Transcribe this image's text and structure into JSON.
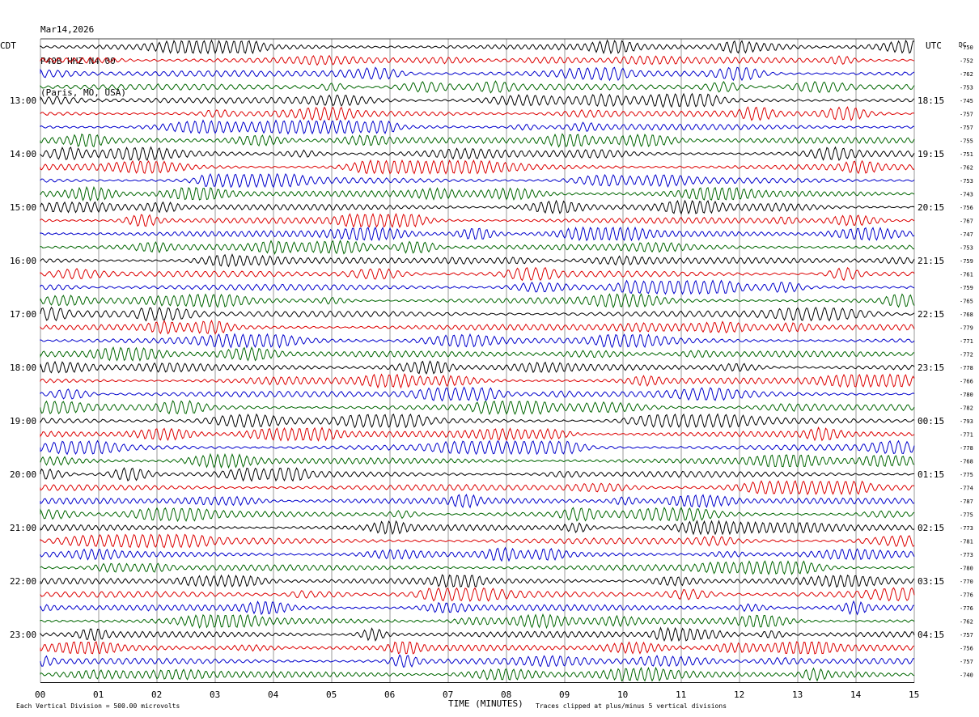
{
  "header": {
    "date": "Mar14,2026",
    "station": "P40B HHZ N4 00",
    "location": "(Paris, MO, USA)"
  },
  "left_tz": "CDT",
  "right_tz": "UTC",
  "dc_label": "DC",
  "xlabel": "TIME (MINUTES)",
  "footer_left": "Each Vertical Division =  500.00 microvolts",
  "footer_right": "Traces clipped at plus/minus 5 vertical divisions",
  "colors": {
    "trace_cycle": [
      "#000000",
      "#dd0000",
      "#0000cc",
      "#006600"
    ],
    "grid": "#555555"
  },
  "chart_data": {
    "type": "line",
    "title": "P40B HHZ N4 00",
    "xlabel": "TIME (MINUTES)",
    "x_ticks": [
      "00",
      "01",
      "02",
      "03",
      "04",
      "05",
      "06",
      "07",
      "08",
      "09",
      "10",
      "11",
      "12",
      "13",
      "14",
      "15"
    ],
    "xlim": [
      0,
      15
    ],
    "left_hour_labels": [
      "13:00",
      "14:00",
      "15:00",
      "16:00",
      "17:00",
      "18:00",
      "19:00",
      "20:00",
      "21:00",
      "22:00",
      "23:00"
    ],
    "right_hour_labels": [
      "18:15",
      "19:15",
      "20:15",
      "21:15",
      "22:15",
      "23:15",
      "00:15",
      "01:15",
      "02:15",
      "03:15",
      "04:15"
    ],
    "dc_offsets": [
      -750,
      -752,
      -762,
      -753,
      -745,
      -757,
      -757,
      -755,
      -751,
      -762,
      -753,
      -743,
      -756,
      -767,
      -747,
      -753,
      -759,
      -761,
      -759,
      -765,
      -768,
      -779,
      -771,
      -772,
      -778,
      -766,
      -780,
      -782,
      -793,
      -771,
      -778,
      -768,
      -775,
      -774,
      -787,
      -775,
      -773,
      -781,
      -773,
      -780,
      -770,
      -776,
      -776,
      -762,
      -757,
      -756,
      -757,
      -740
    ],
    "trace_minutes": 15,
    "trace_count": 48
  }
}
